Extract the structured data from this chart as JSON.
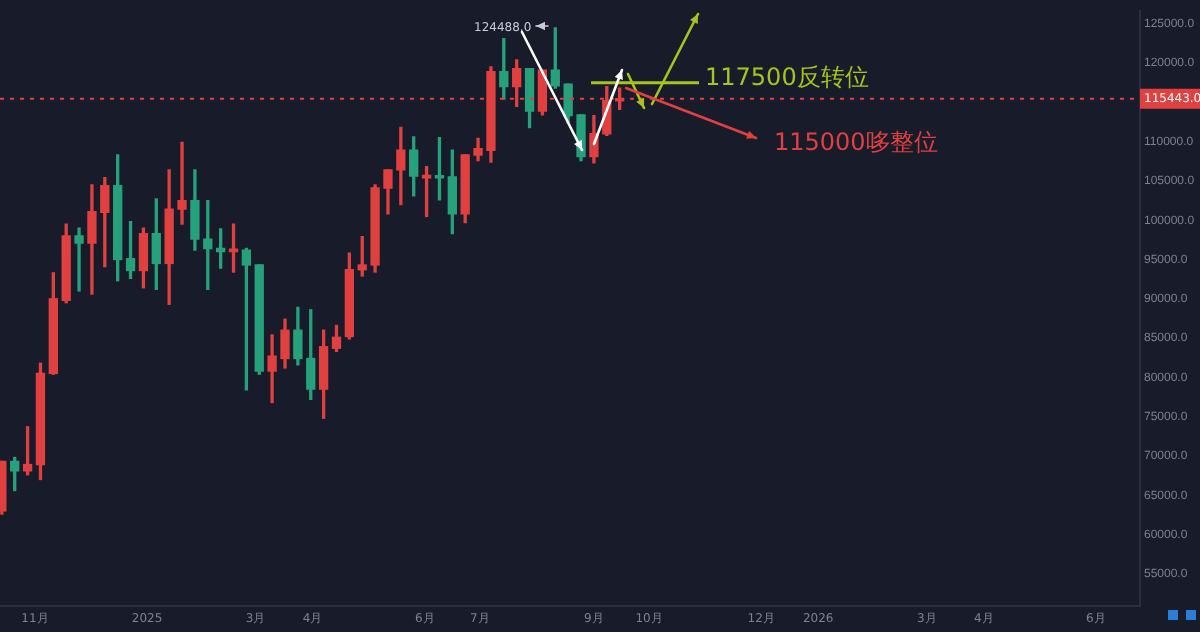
{
  "chart_data": {
    "type": "candlestick",
    "x": [
      "2024-10-14",
      "2024-10-21",
      "2024-10-28",
      "2024-11-04",
      "2024-11-11",
      "2024-11-18",
      "2024-11-25",
      "2024-12-02",
      "2024-12-09",
      "2024-12-16",
      "2024-12-23",
      "2024-12-30",
      "2025-01-06",
      "2025-01-13",
      "2025-01-20",
      "2025-01-27",
      "2025-02-03",
      "2025-02-10",
      "2025-02-17",
      "2025-02-24",
      "2025-03-03",
      "2025-03-10",
      "2025-03-17",
      "2025-03-24",
      "2025-03-31",
      "2025-04-07",
      "2025-04-14",
      "2025-04-21",
      "2025-04-28",
      "2025-05-05",
      "2025-05-12",
      "2025-05-19",
      "2025-05-26",
      "2025-06-02",
      "2025-06-09",
      "2025-06-16",
      "2025-06-23",
      "2025-06-30",
      "2025-07-07",
      "2025-07-14",
      "2025-07-21",
      "2025-07-28",
      "2025-08-04",
      "2025-08-11",
      "2025-08-18",
      "2025-08-25",
      "2025-09-01",
      "2025-09-08",
      "2025-09-15"
    ],
    "ohlc": [
      [
        63000,
        69300,
        62600,
        69300
      ],
      [
        69300,
        69800,
        65600,
        68100
      ],
      [
        68100,
        73700,
        67600,
        68900
      ],
      [
        68900,
        81800,
        67000,
        80500
      ],
      [
        80500,
        93300,
        80400,
        90000
      ],
      [
        89800,
        99500,
        89500,
        98000
      ],
      [
        98000,
        99000,
        91000,
        97100
      ],
      [
        97100,
        104500,
        90600,
        101100
      ],
      [
        101000,
        105400,
        94100,
        104400
      ],
      [
        104400,
        108300,
        92300,
        95000
      ],
      [
        95100,
        99800,
        92600,
        93600
      ],
      [
        93600,
        99000,
        91400,
        98300
      ],
      [
        98300,
        102700,
        91200,
        94500
      ],
      [
        94500,
        106400,
        89300,
        101400
      ],
      [
        101400,
        109900,
        99500,
        102500
      ],
      [
        102500,
        106400,
        96200,
        97600
      ],
      [
        97600,
        102500,
        91200,
        96400
      ],
      [
        96400,
        98900,
        93900,
        96000
      ],
      [
        96000,
        99500,
        93400,
        96300
      ],
      [
        96200,
        96400,
        78400,
        94300
      ],
      [
        94300,
        94300,
        80400,
        80800
      ],
      [
        80800,
        85400,
        76800,
        82700
      ],
      [
        82400,
        87400,
        81200,
        86000
      ],
      [
        86000,
        88900,
        81600,
        82400
      ],
      [
        82400,
        88600,
        77200,
        78500
      ],
      [
        78500,
        86000,
        74800,
        83900
      ],
      [
        83700,
        86600,
        83300,
        85100
      ],
      [
        85200,
        95800,
        84900,
        93700
      ],
      [
        93700,
        97900,
        92900,
        94300
      ],
      [
        94300,
        104500,
        93400,
        104100
      ],
      [
        104100,
        106400,
        100800,
        106400
      ],
      [
        106400,
        111800,
        102000,
        108900
      ],
      [
        108900,
        110600,
        103100,
        105600
      ],
      [
        105400,
        106800,
        100500,
        105700
      ],
      [
        105600,
        110500,
        102600,
        105400
      ],
      [
        105500,
        108900,
        98300,
        100800
      ],
      [
        100800,
        108300,
        99700,
        108300
      ],
      [
        108300,
        110400,
        107600,
        109100
      ],
      [
        108900,
        119500,
        107400,
        118900
      ],
      [
        118900,
        123100,
        115400,
        117000
      ],
      [
        117000,
        120400,
        114500,
        119300
      ],
      [
        119300,
        119300,
        111800,
        113900
      ],
      [
        113900,
        119100,
        113400,
        119100
      ],
      [
        119100,
        124488,
        116800,
        117100
      ],
      [
        117300,
        117300,
        112400,
        113300
      ],
      [
        113400,
        113400,
        107600,
        108100
      ],
      [
        108100,
        113300,
        107300,
        111000
      ],
      [
        111000,
        117000,
        110800,
        115200
      ],
      [
        115200,
        116800,
        114100,
        115443
      ]
    ],
    "colors": [
      "#e0403f",
      "#26a17b",
      "#e0403f",
      "#e0403f",
      "#e0403f",
      "#e0403f",
      "#26a17b",
      "#e0403f",
      "#e0403f",
      "#26a17b",
      "#26a17b",
      "#e0403f",
      "#26a17b",
      "#e0403f",
      "#e0403f",
      "#26a17b",
      "#26a17b",
      "#26a17b",
      "#e0403f",
      "#26a17b",
      "#26a17b",
      "#e0403f",
      "#e0403f",
      "#26a17b",
      "#26a17b",
      "#e0403f",
      "#e0403f",
      "#e0403f",
      "#e0403f",
      "#e0403f",
      "#e0403f",
      "#e0403f",
      "#26a17b",
      "#e0403f",
      "#26a17b",
      "#26a17b",
      "#e0403f",
      "#e0403f",
      "#e0403f",
      "#26a17b",
      "#e0403f",
      "#26a17b",
      "#e0403f",
      "#26a17b",
      "#26a17b",
      "#26a17b",
      "#e0403f",
      "#e0403f",
      "#e0403f"
    ],
    "xlim": [
      "2024-10-13",
      "2026-06-25"
    ],
    "xticks": [
      {
        "value": "2024-11-01",
        "label": "11月"
      },
      {
        "value": "2025-01-01",
        "label": "2025"
      },
      {
        "value": "2025-03-01",
        "label": "3月"
      },
      {
        "value": "2025-04-01",
        "label": "4月"
      },
      {
        "value": "2025-06-01",
        "label": "6月"
      },
      {
        "value": "2025-07-01",
        "label": "7月"
      },
      {
        "value": "2025-09-01",
        "label": "9月"
      },
      {
        "value": "2025-10-01",
        "label": "10月"
      },
      {
        "value": "2025-12-01",
        "label": "12月"
      },
      {
        "value": "2026-01-01",
        "label": "2026"
      },
      {
        "value": "2026-03-01",
        "label": "3月"
      },
      {
        "value": "2026-04-01",
        "label": "4月"
      },
      {
        "value": "2026-06-01",
        "label": "6月"
      }
    ],
    "ylim": [
      50900,
      126600
    ],
    "yticks": [
      {
        "value": 55000,
        "label": "55000.0"
      },
      {
        "value": 60000,
        "label": "60000.0"
      },
      {
        "value": 65000,
        "label": "65000.0"
      },
      {
        "value": 70000,
        "label": "70000.0"
      },
      {
        "value": 75000,
        "label": "75000.0"
      },
      {
        "value": 80000,
        "label": "80000.0"
      },
      {
        "value": 85000,
        "label": "85000.0"
      },
      {
        "value": 90000,
        "label": "90000.0"
      },
      {
        "value": 95000,
        "label": "95000.0"
      },
      {
        "value": 100000,
        "label": "100000.0"
      },
      {
        "value": 105000,
        "label": "105000.0"
      },
      {
        "value": 110000,
        "label": "110000.0"
      },
      {
        "value": 115000,
        "label": null
      },
      {
        "value": 120000,
        "label": "120000.0"
      },
      {
        "value": 125000,
        "label": "125000.0"
      }
    ],
    "ref_lines": [
      {
        "axis": "y",
        "value": 115443,
        "label": "115443.0",
        "color": "#e0403f",
        "line_style": "dotted"
      },
      {
        "axis": "y",
        "value": 117500,
        "label": "117500反转位",
        "color": "#a6c41c",
        "line_style": "solid"
      }
    ],
    "annotations": [
      {
        "text": "124488.0",
        "x": "2025-08-11",
        "y": 124488
      },
      "115000哆整位"
    ],
    "grid": false,
    "legend": false
  }
}
